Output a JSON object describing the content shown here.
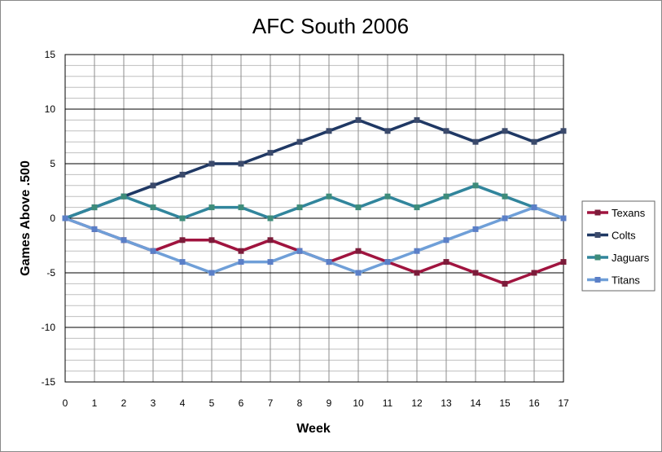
{
  "chart_data": {
    "type": "line",
    "title": "AFC South 2006",
    "xlabel": "Week",
    "ylabel": "Games Above .500",
    "x": [
      0,
      1,
      2,
      3,
      4,
      5,
      6,
      7,
      8,
      9,
      10,
      11,
      12,
      13,
      14,
      15,
      16,
      17
    ],
    "xlim": [
      0,
      17
    ],
    "ylim": [
      -15,
      15
    ],
    "y_major_ticks": [
      -15,
      -10,
      -5,
      0,
      5,
      10,
      15
    ],
    "y_minor_step": 1,
    "grid": true,
    "legend_position": "right",
    "series": [
      {
        "name": "Texans",
        "color": "#A0143F",
        "marker_color": "#7B1C3A",
        "values": [
          0,
          -1,
          -2,
          -3,
          -2,
          -2,
          -3,
          -2,
          -3,
          -4,
          -3,
          -4,
          -5,
          -4,
          -5,
          -6,
          -5,
          -4
        ]
      },
      {
        "name": "Colts",
        "color": "#1F3864",
        "marker_color": "#3B4A6B",
        "values": [
          0,
          1,
          2,
          3,
          4,
          5,
          5,
          6,
          7,
          8,
          9,
          8,
          9,
          8,
          7,
          8,
          7,
          8
        ]
      },
      {
        "name": "Jaguars",
        "color": "#31859C",
        "marker_color": "#3E8C7A",
        "values": [
          0,
          1,
          2,
          1,
          0,
          1,
          1,
          0,
          1,
          2,
          1,
          2,
          1,
          2,
          3,
          2,
          1,
          0
        ]
      },
      {
        "name": "Titans",
        "color": "#6F9FD8",
        "marker_color": "#5B7FC7",
        "values": [
          0,
          -1,
          -2,
          -3,
          -4,
          -5,
          -4,
          -4,
          -3,
          -4,
          -5,
          -4,
          -3,
          -2,
          -1,
          0,
          1,
          0
        ]
      }
    ]
  }
}
